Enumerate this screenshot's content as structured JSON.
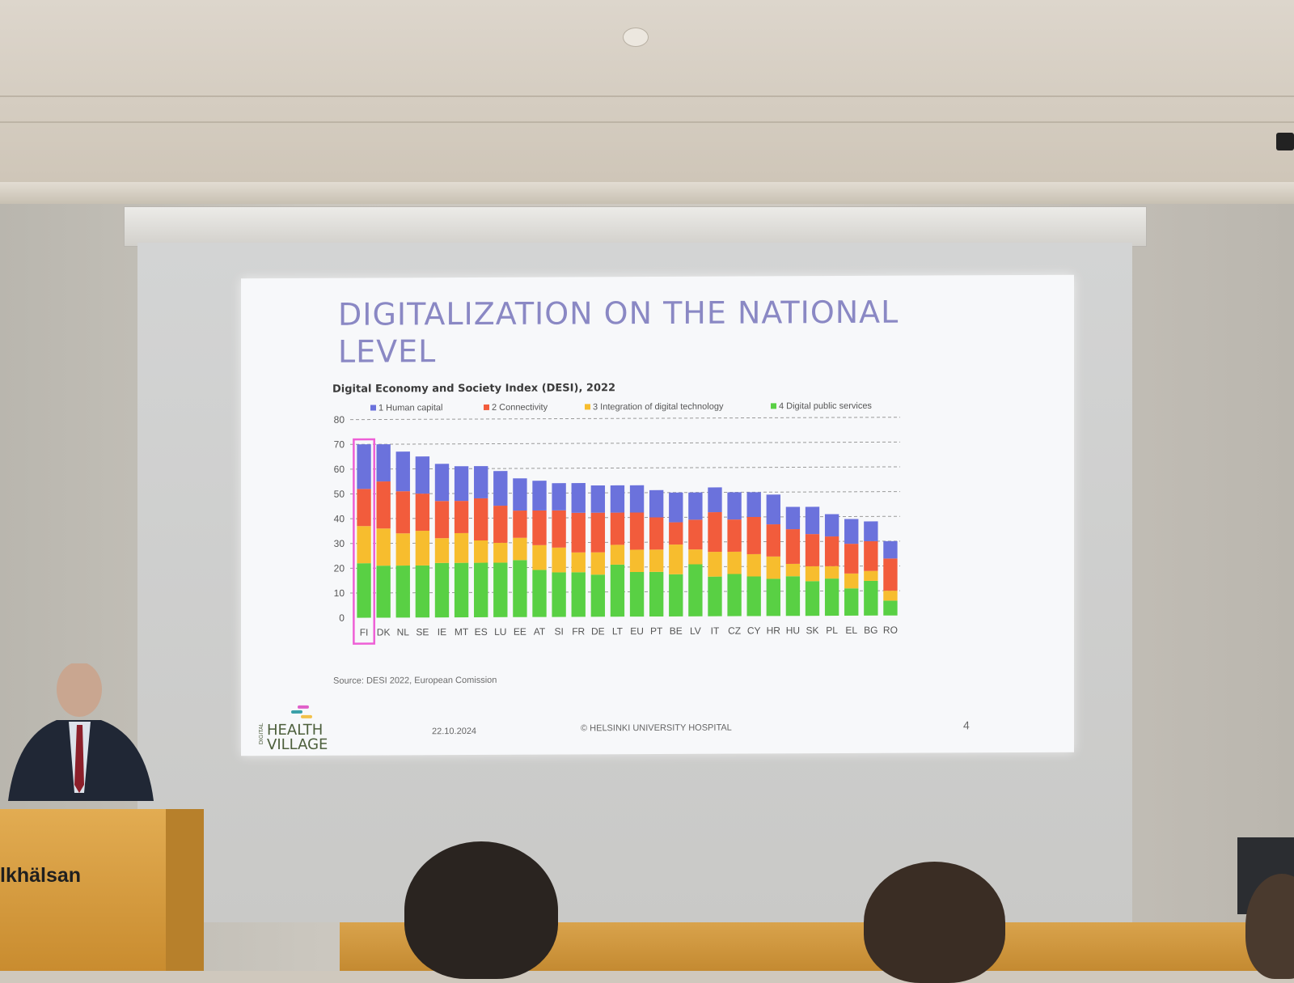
{
  "slide": {
    "title": "DIGITALIZATION ON THE NATIONAL LEVEL",
    "source": "Source: DESI 2022, European Comission",
    "date": "22.10.2024",
    "footer": "© HELSINKI UNIVERSITY HOSPITAL",
    "page_number": "4",
    "logo": {
      "small": "DIGITAL",
      "line1": "HEALTH",
      "line2": "VILLAGE"
    }
  },
  "podium": {
    "brand": "lkhälsan"
  },
  "colors": {
    "human_capital": "#6b72dc",
    "connectivity": "#f25c3c",
    "integration": "#f7bd2e",
    "public_services": "#59d044",
    "highlight": "#ee5fd6",
    "title": "#8a88c4"
  },
  "chart_data": {
    "type": "bar",
    "stacked": true,
    "title": "Digital Economy and Society Index (DESI), 2022",
    "xlabel": "",
    "ylabel": "",
    "ylim": [
      0,
      80
    ],
    "yticks": [
      0,
      10,
      20,
      30,
      40,
      50,
      60,
      70,
      80
    ],
    "grid": true,
    "legend_position": "top",
    "highlighted_category": "FI",
    "categories": [
      "FI",
      "DK",
      "NL",
      "SE",
      "IE",
      "MT",
      "ES",
      "LU",
      "EE",
      "AT",
      "SI",
      "FR",
      "DE",
      "LT",
      "EU",
      "PT",
      "BE",
      "LV",
      "IT",
      "CZ",
      "CY",
      "HR",
      "HU",
      "SK",
      "PL",
      "EL",
      "BG",
      "RO"
    ],
    "series": [
      {
        "name": "1 Human capital",
        "values": [
          18,
          15,
          16,
          15,
          15,
          14,
          13,
          14,
          13,
          12,
          11,
          12,
          11,
          11,
          11,
          11,
          12,
          11,
          10,
          11,
          10,
          12,
          9,
          11,
          9,
          10,
          8,
          7
        ]
      },
      {
        "name": "2 Connectivity",
        "values": [
          15,
          19,
          17,
          15,
          15,
          13,
          17,
          15,
          11,
          14,
          15,
          16,
          16,
          13,
          15,
          13,
          9,
          12,
          16,
          13,
          15,
          13,
          14,
          13,
          12,
          12,
          12,
          13
        ]
      },
      {
        "name": "3 Integration of digital technology",
        "values": [
          15,
          15,
          13,
          14,
          10,
          12,
          9,
          8,
          9,
          10,
          10,
          8,
          9,
          8,
          9,
          9,
          12,
          6,
          10,
          9,
          9,
          9,
          5,
          6,
          5,
          6,
          4,
          4
        ]
      },
      {
        "name": "4 Digital public services",
        "values": [
          22,
          21,
          21,
          21,
          22,
          22,
          22,
          22,
          23,
          19,
          18,
          18,
          17,
          21,
          18,
          18,
          17,
          21,
          16,
          17,
          16,
          15,
          16,
          14,
          15,
          11,
          14,
          6
        ]
      }
    ]
  }
}
